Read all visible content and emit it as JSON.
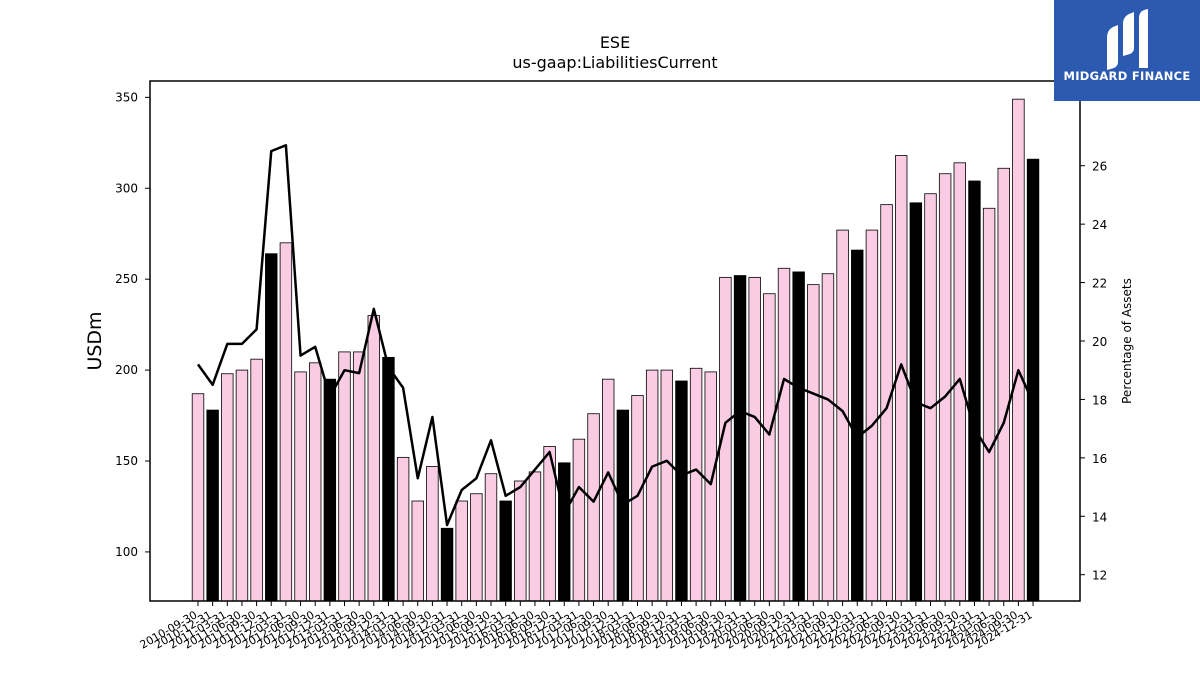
{
  "logo": {
    "text": "MIDGARD FINANCE",
    "background": "#2b5ab0"
  },
  "chart_data": {
    "type": "bar",
    "title": "ESE",
    "subtitle": "us-gaap:LiabilitiesCurrent",
    "ylabel": "USDm",
    "y2label": "Percentage of Assets",
    "ylim": [
      73,
      359
    ],
    "y2lim": [
      11.1,
      28.9
    ],
    "yticks": [
      100,
      150,
      200,
      250,
      300,
      350
    ],
    "y2ticks": [
      12,
      14,
      16,
      18,
      20,
      22,
      24,
      26
    ],
    "colors": {
      "quarter": "#f9cce3",
      "fiscal_year_end": "#000000",
      "line": "#000000"
    },
    "categories": [
      "2010-09-30",
      "2010-12-31",
      "2011-03-31",
      "2011-06-30",
      "2011-09-30",
      "2011-12-31",
      "2012-03-31",
      "2012-06-30",
      "2012-09-30",
      "2012-12-31",
      "2013-03-31",
      "2013-06-30",
      "2013-09-30",
      "2013-12-31",
      "2014-03-31",
      "2014-06-30",
      "2014-09-30",
      "2014-12-31",
      "2015-03-31",
      "2015-06-30",
      "2015-09-30",
      "2015-12-31",
      "2016-03-31",
      "2016-06-30",
      "2016-09-30",
      "2016-12-31",
      "2017-03-31",
      "2017-06-30",
      "2017-09-30",
      "2017-12-31",
      "2018-03-31",
      "2018-06-30",
      "2018-09-30",
      "2018-12-31",
      "2019-03-31",
      "2019-06-30",
      "2019-09-30",
      "2019-12-31",
      "2020-03-31",
      "2020-06-30",
      "2020-09-30",
      "2020-12-31",
      "2021-03-31",
      "2021-06-30",
      "2021-09-30",
      "2021-12-31",
      "2022-03-31",
      "2022-06-30",
      "2022-09-30",
      "2022-12-31",
      "2023-03-31",
      "2023-06-30",
      "2023-09-30",
      "2023-12-31",
      "2024-03-31",
      "2024-06-30",
      "2024-09-30",
      "2024-12-31"
    ],
    "series": [
      {
        "kind": "bar",
        "values": [
          187,
          178,
          198,
          200,
          206,
          264,
          270,
          199,
          204,
          195,
          210,
          210,
          230,
          207,
          152,
          128,
          147,
          113,
          128,
          132,
          143,
          128,
          139,
          144,
          158,
          149,
          162,
          176,
          195,
          178,
          186,
          200,
          200,
          194,
          201,
          199,
          251,
          252,
          251,
          242,
          256,
          254,
          247,
          253,
          277,
          266,
          277,
          291,
          318,
          292,
          297,
          308,
          314,
          304,
          289,
          311,
          349,
          316
        ],
        "fiscal_year_end": [
          false,
          true,
          false,
          false,
          false,
          true,
          false,
          false,
          false,
          true,
          false,
          false,
          false,
          true,
          false,
          false,
          false,
          true,
          false,
          false,
          false,
          true,
          false,
          false,
          false,
          true,
          false,
          false,
          false,
          true,
          false,
          false,
          false,
          true,
          false,
          false,
          false,
          true,
          false,
          false,
          false,
          true,
          false,
          false,
          false,
          true,
          false,
          false,
          false,
          true,
          false,
          false,
          false,
          true,
          false,
          false,
          false,
          true
        ]
      },
      {
        "kind": "line",
        "axis": "right",
        "values": [
          19.2,
          18.5,
          19.9,
          19.9,
          20.4,
          26.5,
          26.7,
          19.5,
          19.8,
          18.1,
          19.0,
          18.9,
          21.1,
          19.1,
          18.4,
          15.3,
          17.4,
          13.7,
          14.9,
          15.3,
          16.6,
          14.7,
          15.0,
          15.6,
          16.2,
          14.1,
          15.0,
          14.5,
          15.5,
          14.4,
          14.7,
          15.7,
          15.9,
          15.4,
          15.6,
          15.1,
          17.2,
          17.6,
          17.4,
          16.8,
          18.7,
          18.4,
          18.2,
          18.0,
          17.6,
          16.7,
          17.1,
          17.7,
          19.2,
          17.9,
          17.7,
          18.1,
          18.7,
          17.0,
          16.2,
          17.2,
          19.0,
          17.9
        ]
      }
    ]
  }
}
